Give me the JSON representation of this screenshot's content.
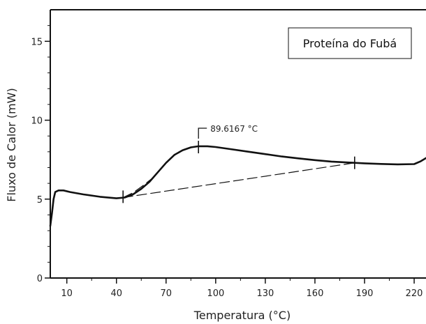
{
  "chart_data": {
    "type": "line",
    "title": "",
    "xlabel": "Temperatura (°C)",
    "ylabel": "Fluxo de Calor (mW)",
    "xlim": [
      0,
      228
    ],
    "ylim": [
      0,
      17
    ],
    "x_ticks": [
      10,
      40,
      70,
      100,
      130,
      160,
      190,
      220
    ],
    "y_ticks": [
      0,
      5,
      10,
      15
    ],
    "y_tick_labels": [
      "0",
      "5",
      "10",
      "15"
    ],
    "grid": false,
    "legend_box": "Proteína do Fubá",
    "annotation": {
      "label": "89.6167 °C",
      "x": 89.6,
      "y": 8.3
    },
    "series": [
      {
        "line_style": "solid",
        "x": [
          0,
          1,
          2,
          3,
          5,
          8,
          12,
          20,
          30,
          40,
          45,
          50,
          55,
          60,
          65,
          70,
          75,
          80,
          85,
          89.6,
          95,
          100,
          110,
          120,
          130,
          140,
          150,
          160,
          170,
          180,
          184,
          190,
          200,
          210,
          220,
          224,
          228
        ],
        "y": [
          3.3,
          4.1,
          5.0,
          5.45,
          5.55,
          5.55,
          5.45,
          5.3,
          5.15,
          5.05,
          5.1,
          5.3,
          5.65,
          6.1,
          6.7,
          7.3,
          7.8,
          8.1,
          8.28,
          8.35,
          8.35,
          8.3,
          8.15,
          8.0,
          7.85,
          7.7,
          7.58,
          7.47,
          7.38,
          7.32,
          7.3,
          7.27,
          7.23,
          7.2,
          7.22,
          7.4,
          7.6
        ]
      },
      {
        "line_style": "dashed",
        "x": [
          44,
          184
        ],
        "y": [
          5.1,
          7.3
        ]
      },
      {
        "line_style": "dashed",
        "x": [
          44,
          50,
          56,
          62
        ],
        "y": [
          5.1,
          5.4,
          5.85,
          6.35
        ]
      }
    ],
    "markers": [
      {
        "x": 44,
        "y": 5.15
      },
      {
        "x": 89.6,
        "y": 8.3
      },
      {
        "x": 184,
        "y": 7.3
      }
    ]
  }
}
